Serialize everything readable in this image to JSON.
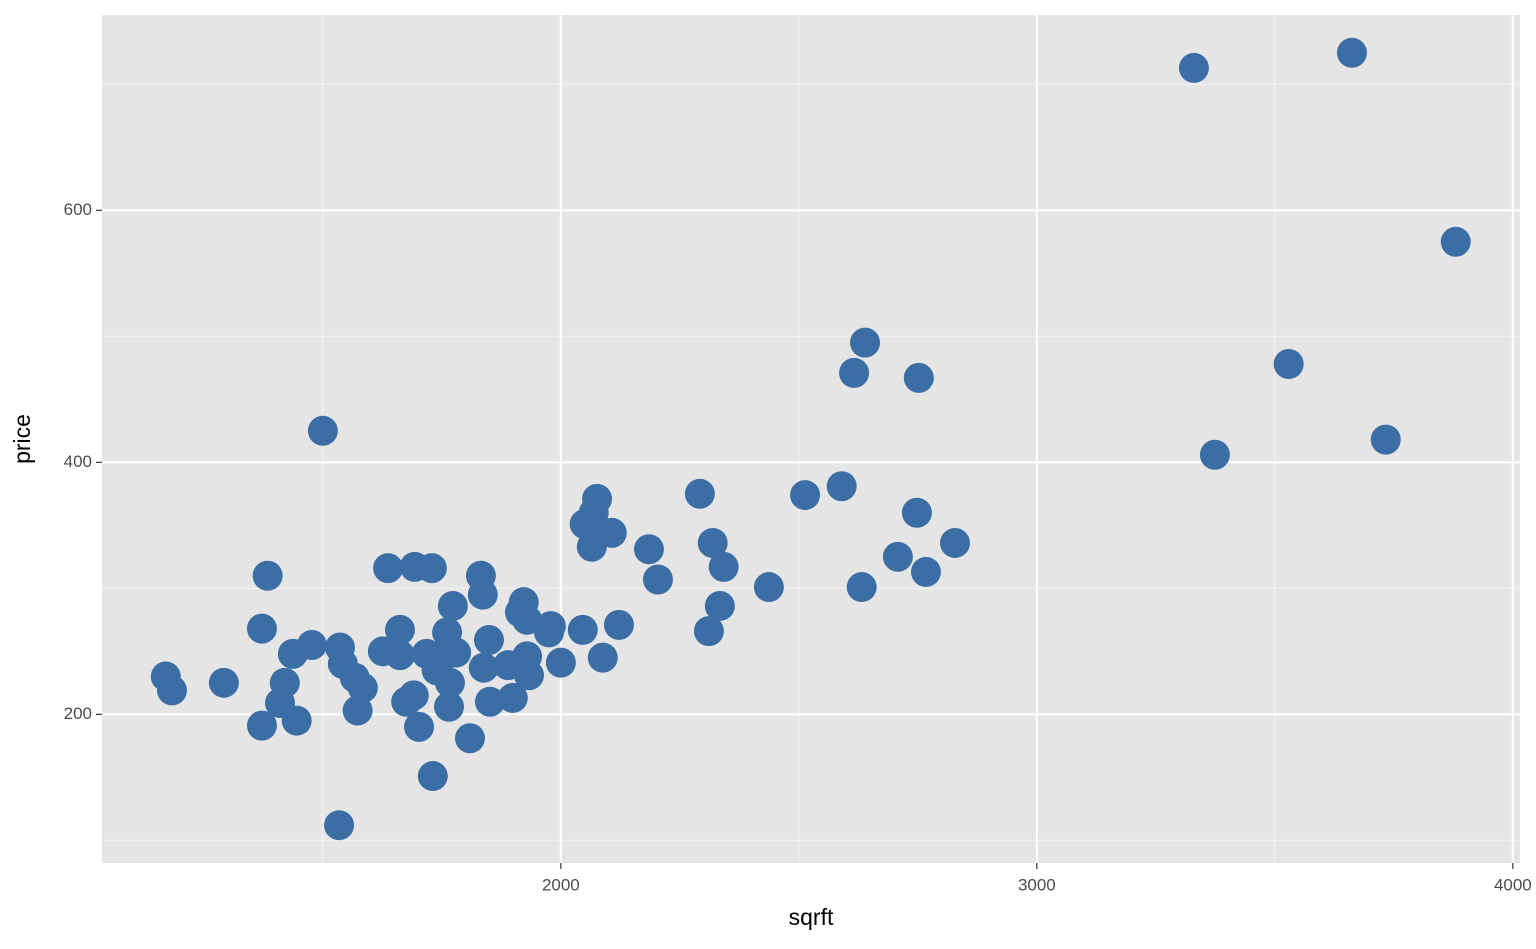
{
  "chart_data": {
    "type": "scatter",
    "x_label": "sqrft",
    "y_label": "price",
    "color": "#3a6ea5",
    "xlim": [
      1036,
      4015
    ],
    "ylim": [
      82,
      755
    ],
    "xticks": [
      2000,
      3000,
      4000
    ],
    "yticks": [
      200,
      400,
      600
    ],
    "x_minor_grid": [
      1500,
      2500,
      3500
    ],
    "y_minor_grid": [
      100,
      300,
      500,
      700
    ],
    "grid": true,
    "x": [
      1170,
      1183,
      1292,
      1372,
      1372,
      1384,
      1410,
      1420,
      1437,
      1445,
      1477,
      1500,
      1534,
      1536,
      1542,
      1567,
      1573,
      1584,
      1626,
      1637,
      1662,
      1662,
      1675,
      1691,
      1693,
      1702,
      1718,
      1729,
      1731,
      1739,
      1756,
      1761,
      1767,
      1765,
      1773,
      1780,
      1809,
      1832,
      1836,
      1838,
      1849,
      1851,
      1889,
      1899,
      1914,
      1922,
      1929,
      1929,
      1933,
      1975,
      1979,
      2000,
      2046,
      2050,
      2065,
      2069,
      2076,
      2088,
      2107,
      2122,
      2185,
      2204,
      2292,
      2311,
      2319,
      2334,
      2342,
      2437,
      2513,
      2590,
      2616,
      2632,
      2639,
      2708,
      2748,
      2752,
      2767,
      2828,
      3330,
      3374,
      3529,
      3662,
      3733,
      3880
    ],
    "values": [
      230,
      219,
      225,
      191,
      268,
      310,
      209,
      225,
      248,
      195,
      255,
      425,
      112,
      253,
      240,
      229,
      203,
      221,
      250,
      316,
      267,
      247,
      210,
      215,
      317,
      190,
      248,
      316,
      151,
      235,
      247,
      265,
      225,
      206,
      286,
      249,
      181,
      310,
      295,
      237,
      259,
      210,
      239,
      213,
      281,
      289,
      275,
      246,
      231,
      265,
      270,
      241,
      267,
      351,
      333,
      360,
      371,
      245,
      344,
      271,
      331,
      307,
      375,
      266,
      336,
      286,
      317,
      301,
      374,
      381,
      471,
      301,
      495,
      325,
      360,
      467,
      313,
      336,
      713,
      406,
      478,
      725,
      418,
      575
    ]
  }
}
